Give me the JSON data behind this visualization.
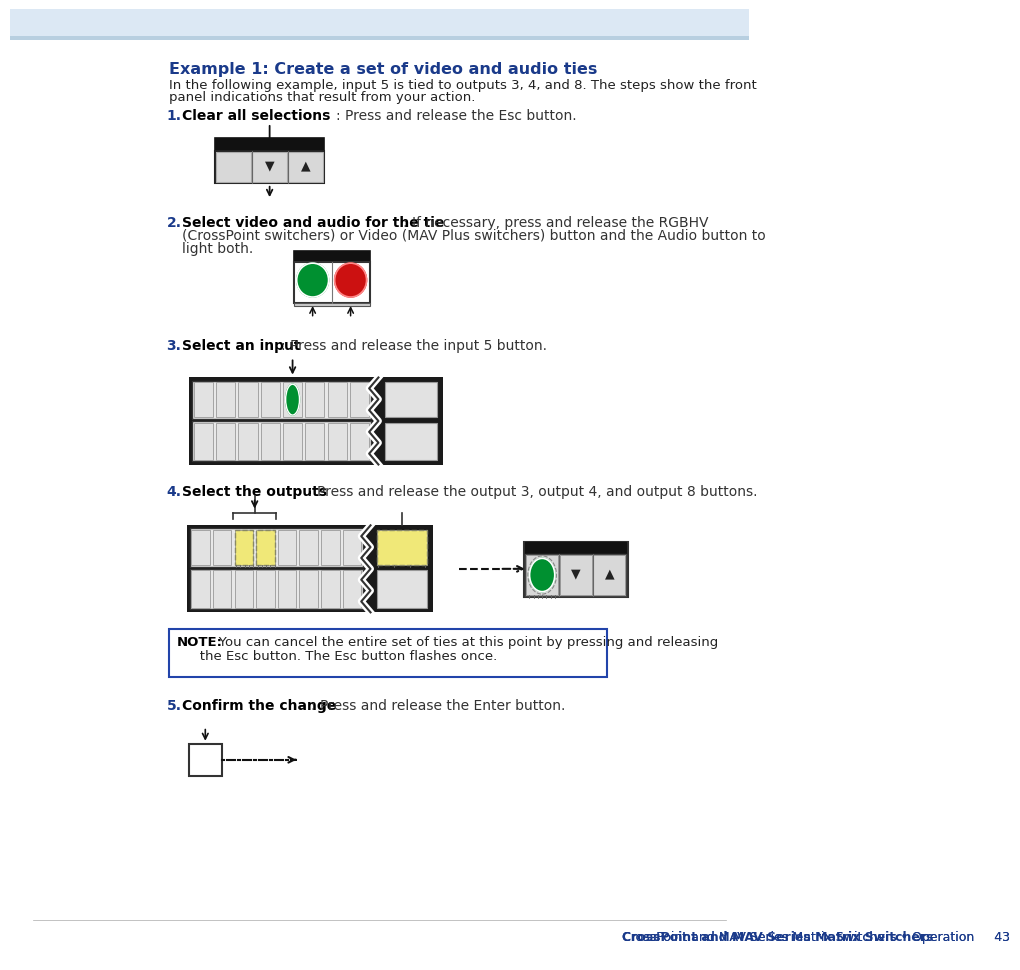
{
  "title": "Example 1: Create a set of video and audio ties",
  "title_color": "#1a3a8a",
  "bg_color": "#ffffff",
  "intro_text1": "In the following example, input 5 is tied to outputs 3, 4, and 8. The steps show the front",
  "intro_text2": "panel indications that result from your action.",
  "step1_bold": "Clear all selections",
  "step1_rest": ": Press and release the Esc button.",
  "step2_bold": "Select video and audio for the tie",
  "step2_rest1": ": If necessary, press and release the RGBHV",
  "step2_rest2": "(CrossPoint switchers) or Video (MAV Plus switchers) button and the Audio button to",
  "step2_rest3": "light both.",
  "step3_bold": "Select an input",
  "step3_rest": ": Press and release the input 5 button.",
  "step4_bold": "Select the outputs",
  "step4_rest": ": Press and release the output 3, output 4, and output 8 buttons.",
  "step5_bold": "Confirm the change",
  "step5_rest": ": Press and release the Enter button.",
  "note_bold": "NOTE:",
  "note_rest1": "   You can cancel the entire set of ties at this point by pressing and releasing",
  "note_rest2": "   the Esc button. The Esc button flashes once.",
  "footer_text": "CrossPoint and MAV Series Matrix Switchers • Operation     43",
  "num_color": "#1a3a8a",
  "note_border": "#2244aa"
}
